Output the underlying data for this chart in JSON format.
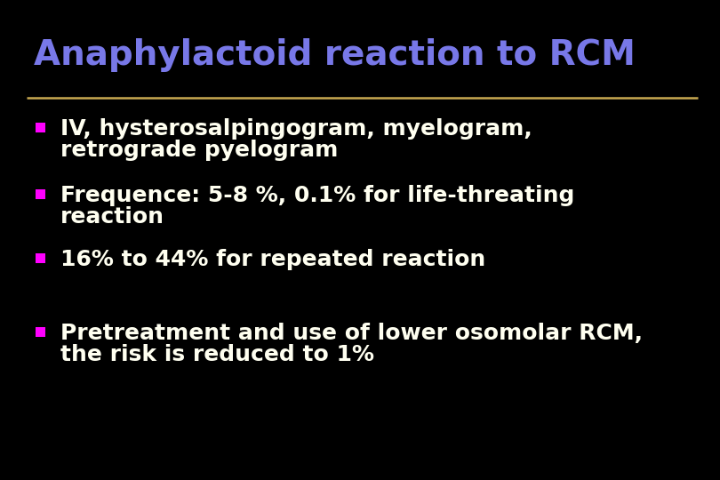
{
  "title": "Anaphylactoid reaction to RCM",
  "title_color": "#7878e8",
  "title_fontsize": 28,
  "background_color": "#000000",
  "separator_color": "#c8a850",
  "bullet_color": "#ff00ff",
  "text_color": "#fffff0",
  "bullet_points": [
    [
      "IV, hysterosalpingogram, myelogram,",
      "retrograde pyelogram"
    ],
    [
      "Frequence: 5-8 %, 0.1% for life-threating",
      "reaction"
    ],
    [
      "16% to 44% for repeated reaction"
    ],
    [
      "Pretreatment and use of lower osomolar RCM,",
      "the risk is reduced to 1%"
    ]
  ],
  "text_fontsize": 18,
  "fig_width": 8.1,
  "fig_height": 5.4,
  "dpi": 100
}
